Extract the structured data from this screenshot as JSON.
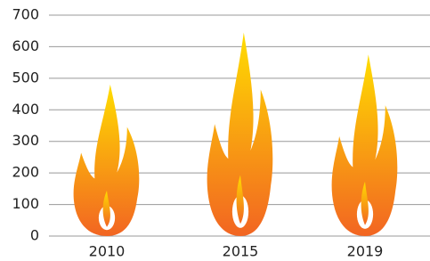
{
  "chart_data": {
    "type": "flame-pictogram",
    "categories": [
      "2010",
      "2015",
      "2019"
    ],
    "values": [
      480,
      645,
      575
    ],
    "color_bottom": "#f26522",
    "color_top": "#ffdd00",
    "ylim": [
      0,
      700
    ],
    "yticks": [
      0,
      100,
      200,
      300,
      400,
      500,
      600,
      700
    ],
    "grid": true
  }
}
